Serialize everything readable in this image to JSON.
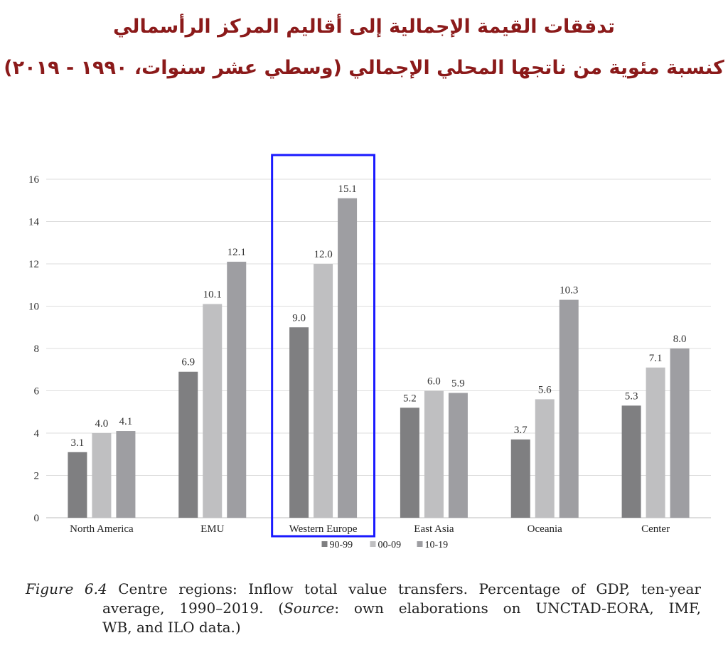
{
  "title_line1": "تدفقات القيمة الإجمالية إلى أقاليم المركز الرأسمالي",
  "title_line2": "كنسبة مئوية من ناتجها المحلي الإجمالي (وسطي عشر سنوات، ١٩٩٠ - ٢٠١٩)",
  "caption": {
    "fig_label": "Figure 6.4",
    "line1_rest": " Centre regions: Inflow total value transfers. Percentage of GDP, ten-year",
    "line2_a": "average, 1990–2019. (",
    "source_word": "Source",
    "line2_b": ": own elaborations on UNCTAD-EORA, IMF,",
    "line3": "WB, and ILO data.)"
  },
  "chart_data": {
    "type": "bar",
    "categories": [
      "North America",
      "EMU",
      "Western Europe",
      "East Asia",
      "Oceania",
      "Center"
    ],
    "series": [
      {
        "name": "90-99",
        "values": [
          3.1,
          6.9,
          9.0,
          5.2,
          3.7,
          5.3
        ],
        "color": "#7f7f81"
      },
      {
        "name": "00-09",
        "values": [
          4.0,
          10.1,
          12.0,
          6.0,
          5.6,
          7.1
        ],
        "color": "#bfbfc1"
      },
      {
        "name": "10-19",
        "values": [
          4.1,
          12.1,
          15.1,
          5.9,
          10.3,
          8.0
        ],
        "color": "#9e9ea2"
      }
    ],
    "data_labels": [
      [
        "3.1",
        "6.9",
        "9.0",
        "5.2",
        "3.7",
        "5.3"
      ],
      [
        "4.0",
        "10.1",
        "12.0",
        "6.0",
        "5.6",
        "7.1"
      ],
      [
        "4.1",
        "12.1",
        "15.1",
        "5.9",
        "10.3",
        "8.0"
      ]
    ],
    "y_ticks": [
      "0",
      "2",
      "4",
      "6",
      "8",
      "10",
      "12",
      "14",
      "16"
    ],
    "ylim": [
      0,
      16
    ],
    "grid": true,
    "legend": "bottom",
    "highlight_category": "Western Europe",
    "highlight_color": "#1a1aff"
  }
}
